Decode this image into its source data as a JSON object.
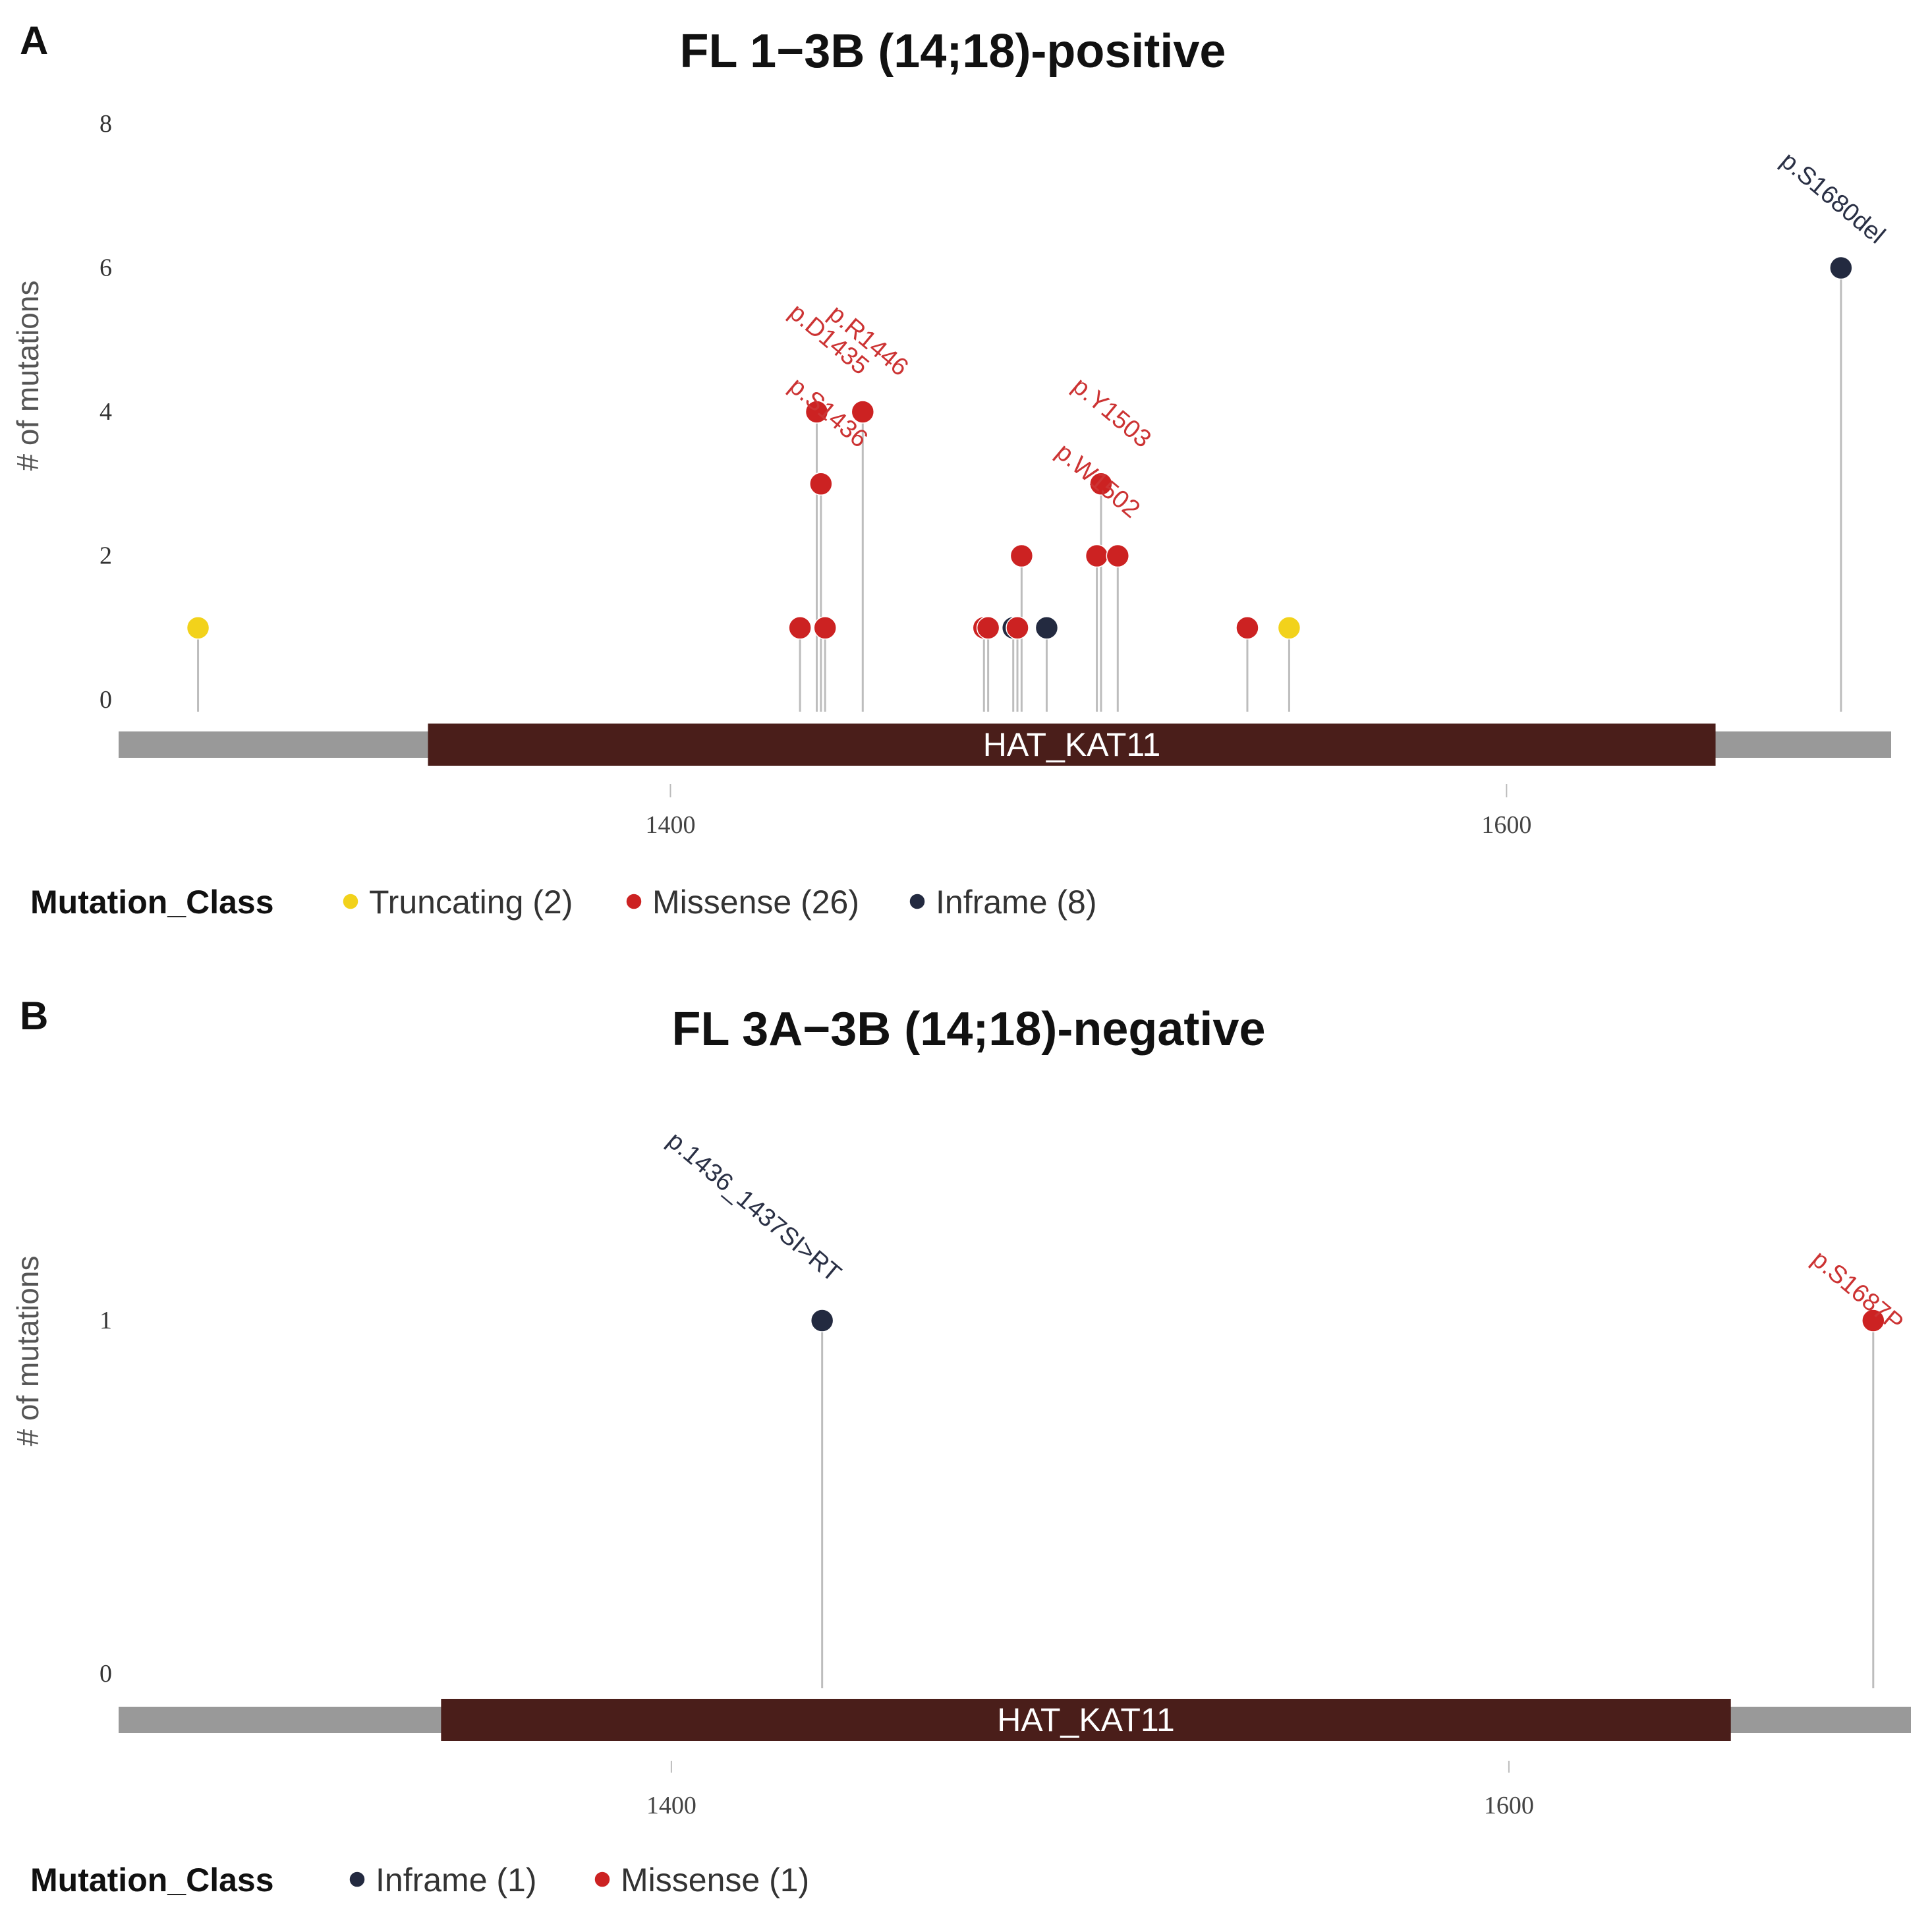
{
  "chart_data": [
    {
      "type": "lollipop",
      "panel_label": "A",
      "title": "FL 1−3B (14;18)-positive",
      "ylabel": "# of mutations",
      "ylim": [
        0,
        8
      ],
      "yticks": [
        "0",
        "2",
        "4",
        "6",
        "8"
      ],
      "xlim": [
        1268,
        1692
      ],
      "xticks": [
        {
          "value": 1400,
          "label": "1400"
        },
        {
          "value": 1600,
          "label": "1600"
        }
      ],
      "protein": {
        "start": 1268,
        "end": 1692,
        "color": "#999999"
      },
      "domain": {
        "name": "HAT_KAT11",
        "start": 1342,
        "end": 1650,
        "color": "#4a1e1a"
      },
      "points": [
        {
          "pos": 1287,
          "count": 1,
          "class": "Truncating"
        },
        {
          "pos": 1431,
          "count": 1,
          "class": "Missense"
        },
        {
          "pos": 1435,
          "count": 4,
          "class": "Missense"
        },
        {
          "pos": 1436,
          "count": 3,
          "class": "Missense"
        },
        {
          "pos": 1437,
          "count": 1,
          "class": "Missense"
        },
        {
          "pos": 1446,
          "count": 4,
          "class": "Missense"
        },
        {
          "pos": 1475,
          "count": 1,
          "class": "Missense"
        },
        {
          "pos": 1476,
          "count": 1,
          "class": "Missense"
        },
        {
          "pos": 1482,
          "count": 1,
          "class": "Inframe"
        },
        {
          "pos": 1483,
          "count": 1,
          "class": "Missense"
        },
        {
          "pos": 1484,
          "count": 2,
          "class": "Missense"
        },
        {
          "pos": 1490,
          "count": 1,
          "class": "Inframe"
        },
        {
          "pos": 1502,
          "count": 2,
          "class": "Missense"
        },
        {
          "pos": 1503,
          "count": 3,
          "class": "Missense"
        },
        {
          "pos": 1507,
          "count": 2,
          "class": "Missense"
        },
        {
          "pos": 1538,
          "count": 1,
          "class": "Missense"
        },
        {
          "pos": 1548,
          "count": 1,
          "class": "Truncating"
        },
        {
          "pos": 1680,
          "count": 6,
          "class": "Inframe"
        }
      ],
      "annotations": [
        {
          "text": "p.R1446",
          "class": "Missense"
        },
        {
          "text": "p.D1435",
          "class": "Missense"
        },
        {
          "text": "p.S1436",
          "class": "Missense"
        },
        {
          "text": "p.Y1503",
          "class": "Missense"
        },
        {
          "text": "p.W1502",
          "class": "Missense"
        },
        {
          "text": "p.S1680del",
          "class": "Inframe"
        }
      ],
      "legend_title": "Mutation_Class",
      "legend": [
        {
          "label": "Truncating (2)",
          "class": "Truncating"
        },
        {
          "label": "Missense (26)",
          "class": "Missense"
        },
        {
          "label": "Inframe (8)",
          "class": "Inframe"
        }
      ]
    },
    {
      "type": "lollipop",
      "panel_label": "B",
      "title": "FL 3A−3B (14;18)-negative",
      "ylabel": "# of mutations",
      "ylim": [
        0,
        1
      ],
      "yticks": [
        "0",
        "1"
      ],
      "xlim": [
        1268,
        1696
      ],
      "xticks": [
        {
          "value": 1400,
          "label": "1400"
        },
        {
          "value": 1600,
          "label": "1600"
        }
      ],
      "protein": {
        "start": 1268,
        "end": 1696,
        "color": "#999999"
      },
      "domain": {
        "name": "HAT_KAT11",
        "start": 1345,
        "end": 1653,
        "color": "#4a1e1a"
      },
      "points": [
        {
          "pos": 1436,
          "count": 1,
          "class": "Inframe"
        },
        {
          "pos": 1687,
          "count": 1,
          "class": "Missense"
        }
      ],
      "annotations": [
        {
          "text": "p.1436_1437SI>RT",
          "class": "Inframe"
        },
        {
          "text": "p.S1687P",
          "class": "Missense"
        }
      ],
      "legend_title": "Mutation_Class",
      "legend": [
        {
          "label": "Inframe (1)",
          "class": "Inframe"
        },
        {
          "label": "Missense (1)",
          "class": "Missense"
        }
      ]
    }
  ],
  "colors": {
    "Truncating": "#f2d21b",
    "Missense": "#cc2222",
    "Inframe": "#232a40",
    "label_Missense": "#cc3333",
    "label_Inframe": "#2a3045"
  }
}
